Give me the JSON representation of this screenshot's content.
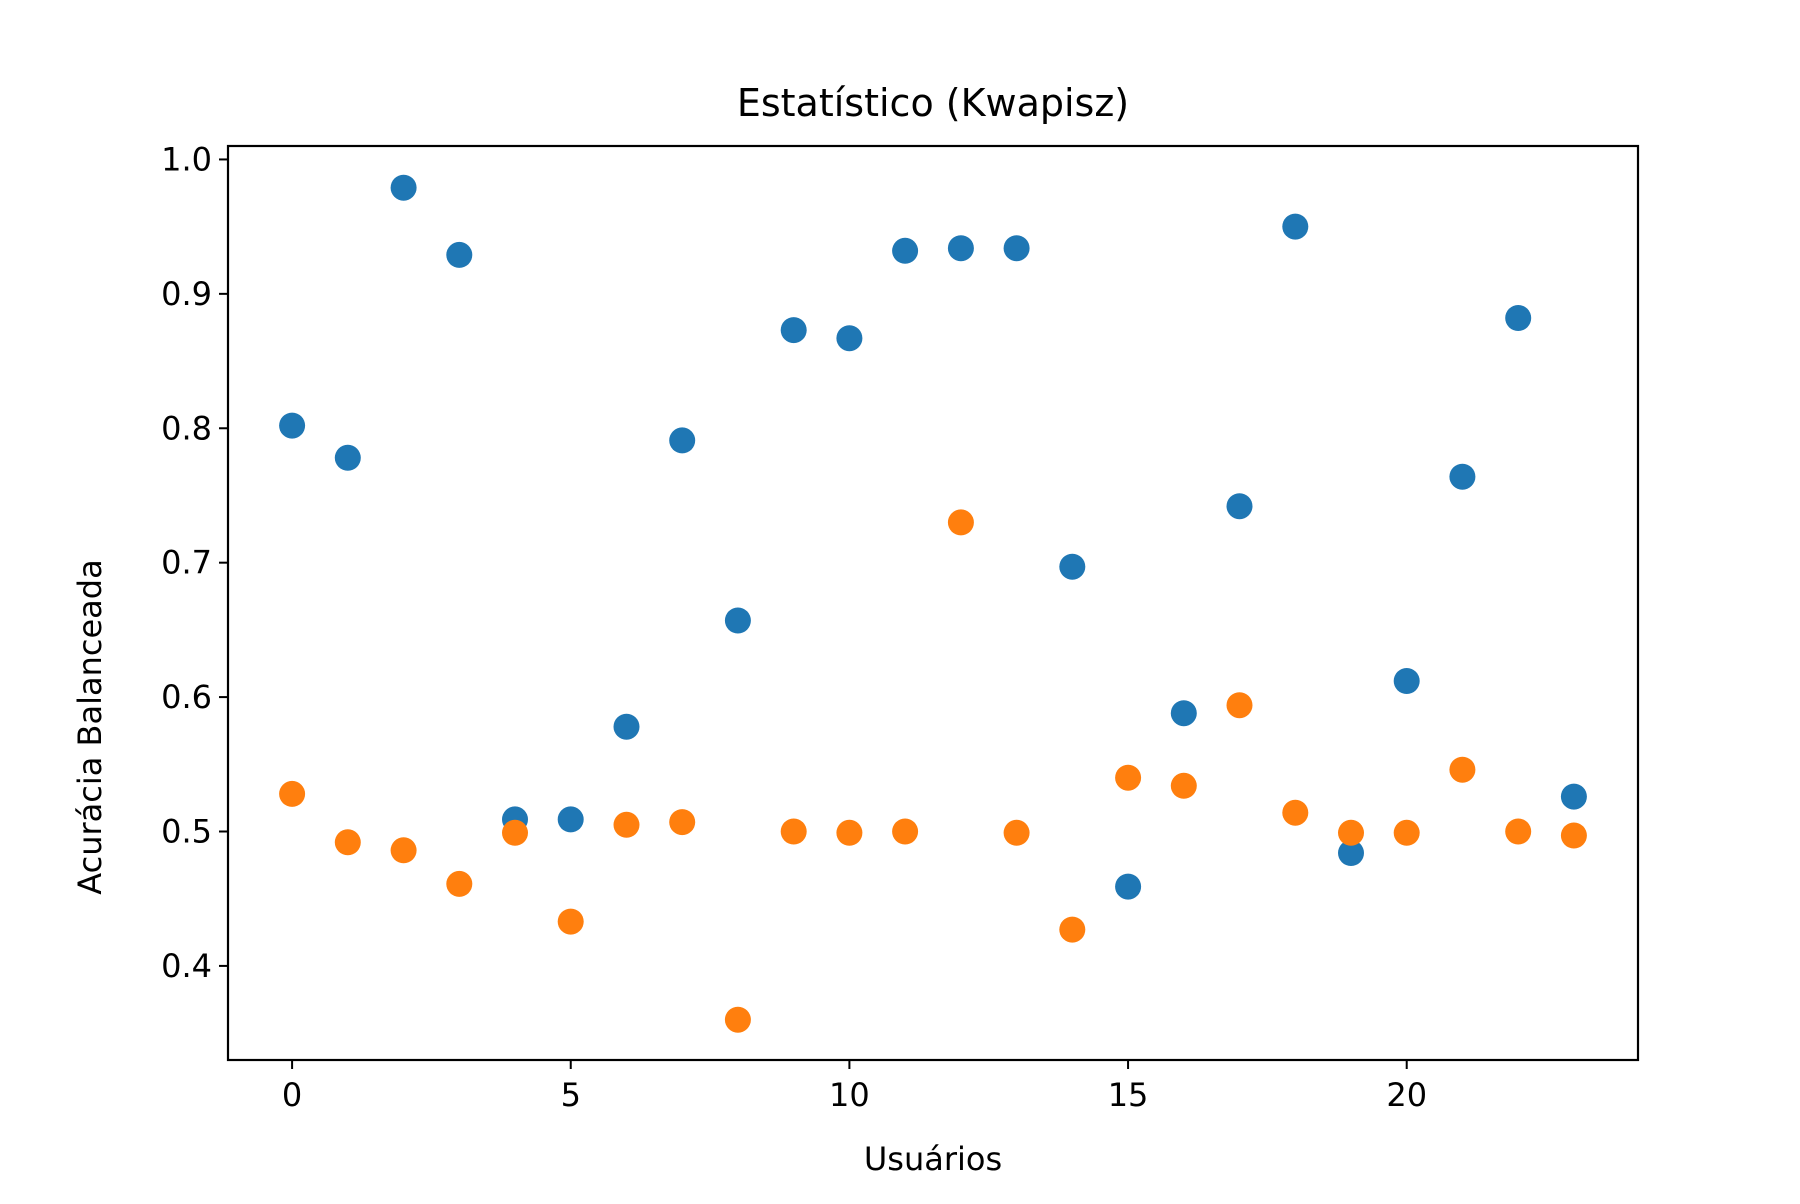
{
  "chart_data": {
    "type": "scatter",
    "title": "Estatístico (Kwapisz)",
    "xlabel": "Usuários",
    "ylabel": "Acurácia Balanceada",
    "xlim": [
      -1.15,
      24.15
    ],
    "ylim": [
      0.33,
      1.01
    ],
    "x_ticks": [
      0,
      5,
      10,
      15,
      20
    ],
    "x_tick_labels": [
      "0",
      "5",
      "10",
      "15",
      "20"
    ],
    "y_ticks": [
      0.4,
      0.5,
      0.6,
      0.7,
      0.8,
      0.9,
      1.0
    ],
    "y_tick_labels": [
      "0.4",
      "0.5",
      "0.6",
      "0.7",
      "0.8",
      "0.9",
      "1.0"
    ],
    "grid": false,
    "legend": false,
    "series": [
      {
        "color": "#1f77b4",
        "x": [
          0,
          1,
          2,
          3,
          4,
          5,
          6,
          7,
          8,
          9,
          10,
          11,
          12,
          13,
          14,
          15,
          16,
          17,
          18,
          19,
          20,
          21,
          22,
          23
        ],
        "y": [
          0.802,
          0.778,
          0.979,
          0.929,
          0.509,
          0.509,
          0.578,
          0.791,
          0.657,
          0.873,
          0.867,
          0.932,
          0.934,
          0.934,
          0.697,
          0.459,
          0.588,
          0.742,
          0.95,
          0.484,
          0.612,
          0.764,
          0.882,
          0.526
        ]
      },
      {
        "color": "#ff7f0e",
        "x": [
          0,
          1,
          2,
          3,
          4,
          5,
          6,
          7,
          8,
          9,
          10,
          11,
          12,
          13,
          14,
          15,
          16,
          17,
          18,
          19,
          20,
          21,
          22,
          23
        ],
        "y": [
          0.528,
          0.492,
          0.486,
          0.461,
          0.499,
          0.433,
          0.505,
          0.507,
          0.36,
          0.5,
          0.499,
          0.5,
          0.73,
          0.499,
          0.427,
          0.54,
          0.534,
          0.594,
          0.514,
          0.499,
          0.499,
          0.546,
          0.5,
          0.497
        ]
      }
    ]
  }
}
